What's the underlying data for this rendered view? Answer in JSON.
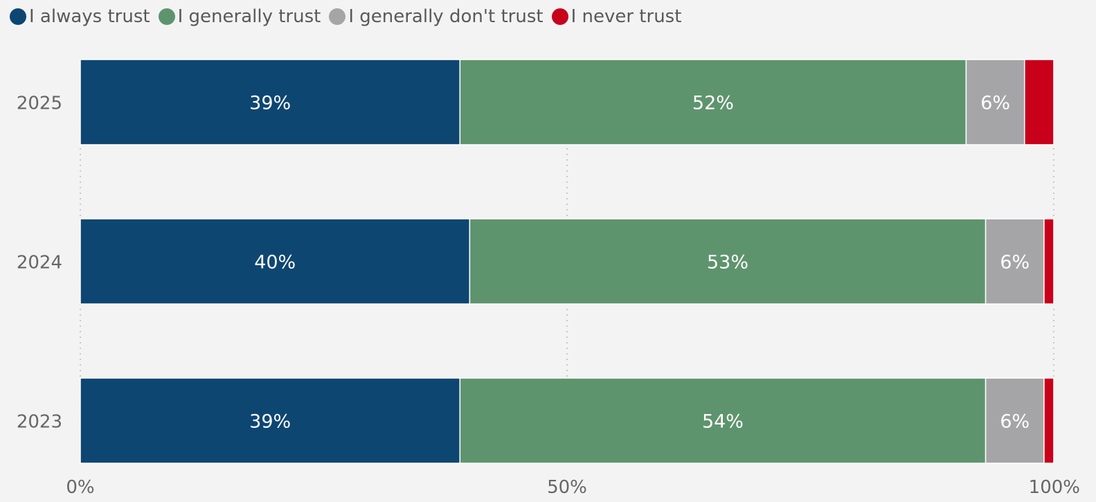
{
  "chart_data": {
    "type": "bar",
    "orientation": "horizontal",
    "stacked": true,
    "categories": [
      "2025",
      "2024",
      "2023"
    ],
    "series": [
      {
        "name": "I always trust",
        "color": "#0e4672",
        "values": [
          39,
          40,
          39
        ],
        "labels": [
          "39%",
          "40%",
          "39%"
        ]
      },
      {
        "name": "I generally trust",
        "color": "#5e946d",
        "values": [
          52,
          53,
          54
        ],
        "labels": [
          "52%",
          "53%",
          "54%"
        ]
      },
      {
        "name": "I generally don't trust",
        "color": "#a5a5a7",
        "values": [
          6,
          6,
          6
        ],
        "labels": [
          "6%",
          "6%",
          "6%"
        ]
      },
      {
        "name": "I never trust",
        "color": "#c8001a",
        "values": [
          3,
          1,
          1
        ],
        "labels": [
          "",
          "",
          ""
        ]
      }
    ],
    "xlim": [
      0,
      100
    ],
    "x_ticks": [
      "0%",
      "50%",
      "100%"
    ],
    "grid": "vertical dotted",
    "legend": "top-left",
    "title": "",
    "xlabel": "",
    "ylabel": ""
  }
}
